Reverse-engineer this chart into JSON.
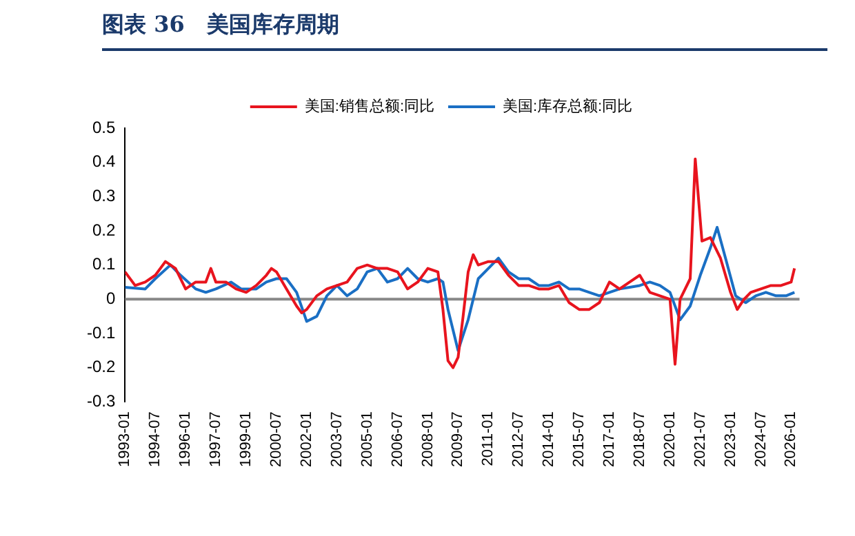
{
  "chart_data": {
    "type": "line",
    "title": "图表 36　美国库存周期",
    "xlim": [
      "1993-01",
      "2026-06"
    ],
    "xticks": [
      "1993-01",
      "1994-07",
      "1996-01",
      "1997-07",
      "1999-01",
      "2000-07",
      "2002-01",
      "2003-07",
      "2005-01",
      "2006-07",
      "2008-01",
      "2009-07",
      "2011-01",
      "2012-07",
      "2014-01",
      "2015-07",
      "2017-01",
      "2018-07",
      "2020-01",
      "2021-07",
      "2023-01",
      "2024-07",
      "2026-01"
    ],
    "ylim": [
      -0.3,
      0.5
    ],
    "yticks": [
      -0.3,
      -0.2,
      -0.1,
      0,
      0.1,
      0.2,
      0.3,
      0.4,
      0.5
    ],
    "grid": false,
    "ref_lines": [
      {
        "axis": "y",
        "value": 0,
        "color": "#888888"
      }
    ],
    "legend": "top",
    "marker": "none",
    "line_style": "solid",
    "series": [
      {
        "name": "美国:销售总额:同比",
        "color": "#e8141e",
        "x": [
          "1993-01",
          "1993-07",
          "1994-01",
          "1994-07",
          "1995-01",
          "1995-07",
          "1996-01",
          "1996-07",
          "1997-01",
          "1997-04",
          "1997-07",
          "1998-01",
          "1998-07",
          "1999-01",
          "1999-07",
          "2000-01",
          "2000-04",
          "2000-07",
          "2001-01",
          "2001-07",
          "2001-10",
          "2002-01",
          "2002-07",
          "2003-01",
          "2003-07",
          "2004-01",
          "2004-07",
          "2005-01",
          "2005-07",
          "2006-01",
          "2006-07",
          "2007-01",
          "2007-07",
          "2008-01",
          "2008-07",
          "2008-10",
          "2009-01",
          "2009-04",
          "2009-07",
          "2009-10",
          "2010-01",
          "2010-04",
          "2010-07",
          "2011-01",
          "2011-07",
          "2012-01",
          "2012-07",
          "2013-01",
          "2013-07",
          "2014-01",
          "2014-07",
          "2015-01",
          "2015-07",
          "2016-01",
          "2016-07",
          "2017-01",
          "2017-07",
          "2018-01",
          "2018-07",
          "2019-01",
          "2019-07",
          "2020-01",
          "2020-04",
          "2020-07",
          "2021-01",
          "2021-04",
          "2021-08",
          "2022-01",
          "2022-07",
          "2023-01",
          "2023-05",
          "2023-09",
          "2024-01",
          "2024-07",
          "2025-01",
          "2025-07",
          "2026-01",
          "2026-03"
        ],
        "values": [
          0.08,
          0.04,
          0.05,
          0.07,
          0.11,
          0.09,
          0.03,
          0.05,
          0.05,
          0.09,
          0.05,
          0.05,
          0.03,
          0.02,
          0.04,
          0.07,
          0.09,
          0.08,
          0.03,
          -0.02,
          -0.04,
          -0.03,
          0.01,
          0.03,
          0.04,
          0.05,
          0.09,
          0.1,
          0.09,
          0.09,
          0.08,
          0.03,
          0.05,
          0.09,
          0.08,
          -0.03,
          -0.18,
          -0.2,
          -0.17,
          -0.05,
          0.08,
          0.13,
          0.1,
          0.11,
          0.11,
          0.07,
          0.04,
          0.04,
          0.03,
          0.03,
          0.04,
          -0.01,
          -0.03,
          -0.03,
          -0.01,
          0.05,
          0.03,
          0.05,
          0.07,
          0.02,
          0.01,
          0.0,
          -0.19,
          0.0,
          0.06,
          0.41,
          0.17,
          0.18,
          0.12,
          0.02,
          -0.03,
          0.0,
          0.02,
          0.03,
          0.04,
          0.04,
          0.05,
          0.09
        ]
      },
      {
        "name": "美国:库存总额:同比",
        "color": "#1a6fc4",
        "x": [
          "1993-01",
          "1994-01",
          "1994-07",
          "1995-04",
          "1995-10",
          "1996-07",
          "1997-01",
          "1997-07",
          "1998-04",
          "1998-10",
          "1999-07",
          "2000-01",
          "2000-07",
          "2001-01",
          "2001-07",
          "2002-01",
          "2002-07",
          "2003-01",
          "2003-07",
          "2004-01",
          "2004-07",
          "2005-01",
          "2005-07",
          "2006-01",
          "2006-07",
          "2007-01",
          "2007-07",
          "2008-01",
          "2008-07",
          "2008-10",
          "2009-01",
          "2009-07",
          "2010-01",
          "2010-07",
          "2011-01",
          "2011-07",
          "2012-01",
          "2012-07",
          "2013-01",
          "2013-07",
          "2014-01",
          "2014-07",
          "2015-01",
          "2015-07",
          "2016-01",
          "2016-07",
          "2017-01",
          "2017-07",
          "2018-01",
          "2018-07",
          "2019-01",
          "2019-07",
          "2020-01",
          "2020-07",
          "2021-01",
          "2021-07",
          "2022-01",
          "2022-05",
          "2022-10",
          "2023-04",
          "2023-10",
          "2024-04",
          "2024-10",
          "2025-04",
          "2025-10",
          "2026-03"
        ],
        "values": [
          0.035,
          0.03,
          0.06,
          0.1,
          0.07,
          0.03,
          0.02,
          0.03,
          0.05,
          0.03,
          0.03,
          0.05,
          0.06,
          0.06,
          0.02,
          -0.065,
          -0.05,
          0.01,
          0.04,
          0.01,
          0.03,
          0.08,
          0.09,
          0.05,
          0.06,
          0.09,
          0.06,
          0.05,
          0.06,
          0.05,
          -0.03,
          -0.15,
          -0.06,
          0.06,
          0.09,
          0.12,
          0.08,
          0.06,
          0.06,
          0.04,
          0.04,
          0.05,
          0.03,
          0.03,
          0.02,
          0.01,
          0.02,
          0.03,
          0.035,
          0.04,
          0.05,
          0.04,
          0.02,
          -0.06,
          -0.02,
          0.07,
          0.15,
          0.21,
          0.12,
          0.01,
          -0.01,
          0.01,
          0.02,
          0.01,
          0.01,
          0.02
        ]
      }
    ]
  }
}
